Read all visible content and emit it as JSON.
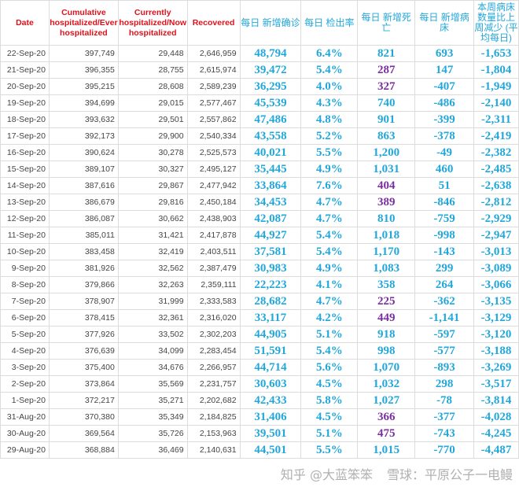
{
  "headers": [
    "Date",
    "Cumulative hospitalized/Ever hospitalized",
    "Currently hospitalized/Now hospitalized",
    "Recovered",
    "每日 新增确诊",
    "每日 检出率",
    "每日 新增死亡",
    "每日 新增病床",
    "本周病床 数量比上 周减少 (平均每日)"
  ],
  "colors": {
    "header_red": "#e0101a",
    "cyan": "#22a7da",
    "purple": "#7a2f9e"
  },
  "rows": [
    {
      "date": "22-Sep-20",
      "cum": "397,749",
      "cur": "29,448",
      "rec": "2,646,959",
      "cases": "48,794",
      "rate": "6.4%",
      "deaths": "821",
      "beds": "693",
      "weekly": "-1,653",
      "purple": false
    },
    {
      "date": "21-Sep-20",
      "cum": "396,355",
      "cur": "28,755",
      "rec": "2,615,974",
      "cases": "39,472",
      "rate": "5.4%",
      "deaths": "287",
      "beds": "147",
      "weekly": "-1,804",
      "purple": true
    },
    {
      "date": "20-Sep-20",
      "cum": "395,215",
      "cur": "28,608",
      "rec": "2,589,239",
      "cases": "36,295",
      "rate": "4.0%",
      "deaths": "327",
      "beds": "-407",
      "weekly": "-1,949",
      "purple": true
    },
    {
      "date": "19-Sep-20",
      "cum": "394,699",
      "cur": "29,015",
      "rec": "2,577,467",
      "cases": "45,539",
      "rate": "4.3%",
      "deaths": "740",
      "beds": "-486",
      "weekly": "-2,140",
      "purple": false
    },
    {
      "date": "18-Sep-20",
      "cum": "393,632",
      "cur": "29,501",
      "rec": "2,557,862",
      "cases": "47,486",
      "rate": "4.8%",
      "deaths": "901",
      "beds": "-399",
      "weekly": "-2,311",
      "purple": false
    },
    {
      "date": "17-Sep-20",
      "cum": "392,173",
      "cur": "29,900",
      "rec": "2,540,334",
      "cases": "43,558",
      "rate": "5.2%",
      "deaths": "863",
      "beds": "-378",
      "weekly": "-2,419",
      "purple": false
    },
    {
      "date": "16-Sep-20",
      "cum": "390,624",
      "cur": "30,278",
      "rec": "2,525,573",
      "cases": "40,021",
      "rate": "5.5%",
      "deaths": "1,200",
      "beds": "-49",
      "weekly": "-2,382",
      "purple": false
    },
    {
      "date": "15-Sep-20",
      "cum": "389,107",
      "cur": "30,327",
      "rec": "2,495,127",
      "cases": "35,445",
      "rate": "4.9%",
      "deaths": "1,031",
      "beds": "460",
      "weekly": "-2,485",
      "purple": false
    },
    {
      "date": "14-Sep-20",
      "cum": "387,616",
      "cur": "29,867",
      "rec": "2,477,942",
      "cases": "33,864",
      "rate": "7.6%",
      "deaths": "404",
      "beds": "51",
      "weekly": "-2,638",
      "purple": true
    },
    {
      "date": "13-Sep-20",
      "cum": "386,679",
      "cur": "29,816",
      "rec": "2,450,184",
      "cases": "34,453",
      "rate": "4.7%",
      "deaths": "389",
      "beds": "-846",
      "weekly": "-2,812",
      "purple": true
    },
    {
      "date": "12-Sep-20",
      "cum": "386,087",
      "cur": "30,662",
      "rec": "2,438,903",
      "cases": "42,087",
      "rate": "4.7%",
      "deaths": "810",
      "beds": "-759",
      "weekly": "-2,929",
      "purple": false
    },
    {
      "date": "11-Sep-20",
      "cum": "385,011",
      "cur": "31,421",
      "rec": "2,417,878",
      "cases": "44,927",
      "rate": "5.4%",
      "deaths": "1,018",
      "beds": "-998",
      "weekly": "-2,947",
      "purple": false
    },
    {
      "date": "10-Sep-20",
      "cum": "383,458",
      "cur": "32,419",
      "rec": "2,403,511",
      "cases": "37,581",
      "rate": "5.4%",
      "deaths": "1,170",
      "beds": "-143",
      "weekly": "-3,013",
      "purple": false
    },
    {
      "date": "9-Sep-20",
      "cum": "381,926",
      "cur": "32,562",
      "rec": "2,387,479",
      "cases": "30,983",
      "rate": "4.9%",
      "deaths": "1,083",
      "beds": "299",
      "weekly": "-3,089",
      "purple": false
    },
    {
      "date": "8-Sep-20",
      "cum": "379,866",
      "cur": "32,263",
      "rec": "2,359,111",
      "cases": "22,223",
      "rate": "4.1%",
      "deaths": "358",
      "beds": "264",
      "weekly": "-3,066",
      "purple": false
    },
    {
      "date": "7-Sep-20",
      "cum": "378,907",
      "cur": "31,999",
      "rec": "2,333,583",
      "cases": "28,682",
      "rate": "4.7%",
      "deaths": "225",
      "beds": "-362",
      "weekly": "-3,135",
      "purple": true
    },
    {
      "date": "6-Sep-20",
      "cum": "378,415",
      "cur": "32,361",
      "rec": "2,316,020",
      "cases": "33,117",
      "rate": "4.2%",
      "deaths": "449",
      "beds": "-1,141",
      "weekly": "-3,129",
      "purple": true
    },
    {
      "date": "5-Sep-20",
      "cum": "377,926",
      "cur": "33,502",
      "rec": "2,302,203",
      "cases": "44,905",
      "rate": "5.1%",
      "deaths": "918",
      "beds": "-597",
      "weekly": "-3,120",
      "purple": false
    },
    {
      "date": "4-Sep-20",
      "cum": "376,639",
      "cur": "34,099",
      "rec": "2,283,454",
      "cases": "51,591",
      "rate": "5.4%",
      "deaths": "998",
      "beds": "-577",
      "weekly": "-3,188",
      "purple": false
    },
    {
      "date": "3-Sep-20",
      "cum": "375,400",
      "cur": "34,676",
      "rec": "2,266,957",
      "cases": "44,714",
      "rate": "5.6%",
      "deaths": "1,070",
      "beds": "-893",
      "weekly": "-3,269",
      "purple": false
    },
    {
      "date": "2-Sep-20",
      "cum": "373,864",
      "cur": "35,569",
      "rec": "2,231,757",
      "cases": "30,603",
      "rate": "4.5%",
      "deaths": "1,032",
      "beds": "298",
      "weekly": "-3,517",
      "purple": false
    },
    {
      "date": "1-Sep-20",
      "cum": "372,217",
      "cur": "35,271",
      "rec": "2,202,682",
      "cases": "42,433",
      "rate": "5.8%",
      "deaths": "1,027",
      "beds": "-78",
      "weekly": "-3,814",
      "purple": false
    },
    {
      "date": "31-Aug-20",
      "cum": "370,380",
      "cur": "35,349",
      "rec": "2,184,825",
      "cases": "31,406",
      "rate": "4.5%",
      "deaths": "366",
      "beds": "-377",
      "weekly": "-4,028",
      "purple": true
    },
    {
      "date": "30-Aug-20",
      "cum": "369,564",
      "cur": "35,726",
      "rec": "2,153,963",
      "cases": "39,501",
      "rate": "5.1%",
      "deaths": "475",
      "beds": "-743",
      "weekly": "-4,245",
      "purple": true
    },
    {
      "date": "29-Aug-20",
      "cum": "368,884",
      "cur": "36,469",
      "rec": "2,140,631",
      "cases": "44,501",
      "rate": "5.5%",
      "deaths": "1,015",
      "beds": "-770",
      "weekly": "-4,487",
      "purple": false
    }
  ],
  "watermarks": [
    "知乎 @大蓝笨笨",
    "雪球：平原公子一电鳗"
  ]
}
